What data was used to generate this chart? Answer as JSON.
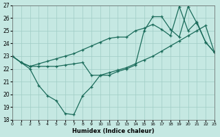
{
  "xlabel": "Humidex (Indice chaleur)",
  "xlim": [
    0,
    23
  ],
  "ylim": [
    18,
    27
  ],
  "xticks": [
    0,
    1,
    2,
    3,
    4,
    5,
    6,
    7,
    8,
    9,
    10,
    11,
    12,
    13,
    14,
    15,
    16,
    17,
    18,
    19,
    20,
    21,
    22,
    23
  ],
  "yticks": [
    18,
    19,
    20,
    21,
    22,
    23,
    24,
    25,
    26,
    27
  ],
  "bg_color": "#c5e8e2",
  "grid_color": "#9fccc5",
  "line_color": "#1a6b5a",
  "line1_x": [
    0,
    1,
    2,
    3,
    4,
    5,
    6,
    7,
    8,
    9,
    10,
    11,
    12,
    13,
    14,
    15,
    16,
    17,
    18,
    19,
    20,
    21,
    22,
    23
  ],
  "line1_y": [
    23.0,
    22.5,
    22.0,
    20.7,
    19.9,
    19.5,
    18.5,
    18.4,
    19.9,
    20.6,
    21.5,
    21.5,
    21.8,
    22.0,
    22.3,
    25.0,
    26.1,
    26.1,
    25.1,
    24.5,
    26.9,
    25.6,
    24.1,
    23.3
  ],
  "line2_x": [
    0,
    1,
    2,
    3,
    4,
    5,
    6,
    7,
    8,
    9,
    10,
    11,
    12,
    13,
    14,
    15,
    16,
    17,
    18,
    19,
    20,
    21,
    22,
    23
  ],
  "line2_y": [
    23.0,
    22.5,
    22.2,
    22.2,
    22.2,
    22.2,
    22.3,
    22.4,
    22.5,
    21.5,
    21.5,
    21.7,
    21.9,
    22.1,
    22.4,
    22.7,
    23.0,
    23.4,
    23.8,
    24.2,
    24.6,
    25.0,
    25.4,
    23.3
  ],
  "line3_x": [
    0,
    1,
    2,
    3,
    4,
    5,
    6,
    7,
    8,
    9,
    10,
    11,
    12,
    13,
    14,
    15,
    16,
    17,
    18,
    19,
    20,
    21,
    22,
    23
  ],
  "line3_y": [
    23.0,
    22.5,
    22.2,
    22.4,
    22.6,
    22.8,
    23.0,
    23.2,
    23.5,
    23.8,
    24.1,
    24.4,
    24.5,
    24.5,
    25.0,
    25.2,
    25.5,
    25.1,
    24.6,
    26.9,
    25.0,
    25.7,
    24.1,
    23.3
  ]
}
